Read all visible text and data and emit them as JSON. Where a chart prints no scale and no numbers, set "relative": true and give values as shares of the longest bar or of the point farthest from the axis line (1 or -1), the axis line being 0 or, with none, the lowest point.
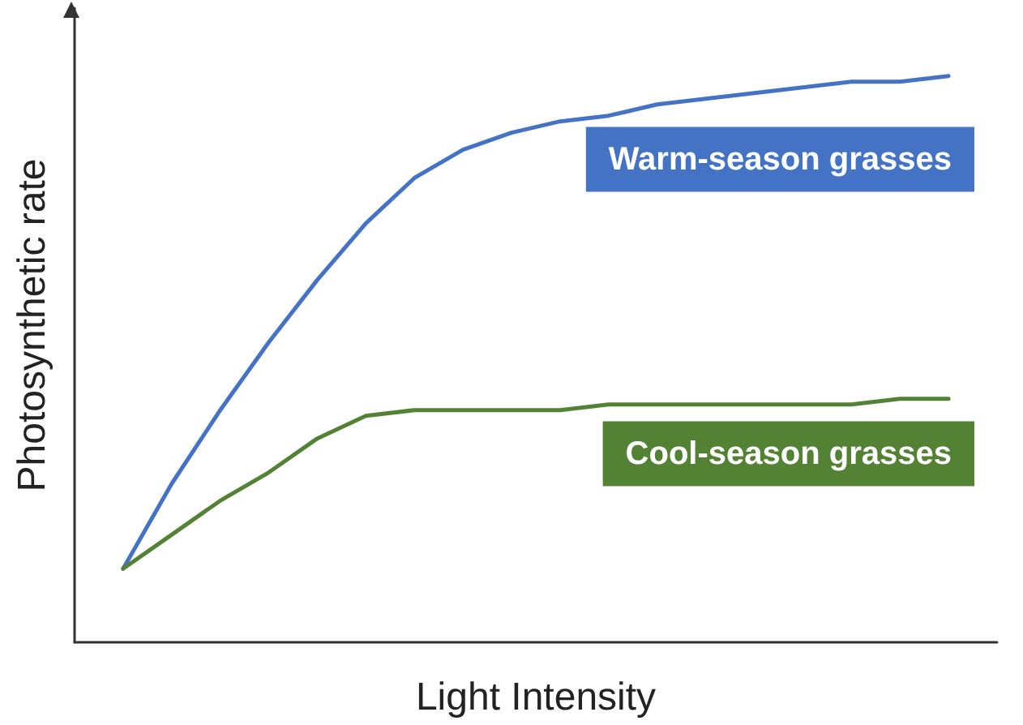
{
  "chart_data": {
    "type": "line",
    "relative": true,
    "xlabel": "Light Intensity",
    "ylabel": "Photosynthetic rate",
    "legend": false,
    "grid": false,
    "marker": "none",
    "line_style": "solid",
    "categories": [
      null,
      null,
      null,
      null,
      null,
      null,
      null,
      null,
      null,
      null,
      null,
      null,
      null,
      null,
      null,
      null,
      null,
      null,
      null,
      null
    ],
    "series": [
      {
        "name": "Warm-season grasses",
        "color": "#4472c4",
        "values": [
          null,
          0.13,
          0.28,
          0.41,
          0.53,
          0.64,
          0.74,
          0.82,
          0.87,
          0.9,
          0.92,
          0.93,
          0.95,
          0.96,
          0.97,
          0.98,
          0.99,
          0.99,
          1,
          null
        ]
      },
      {
        "name": "Cool-season grasses",
        "color": "#548235",
        "values": [
          null,
          0.13,
          0.19,
          0.25,
          0.3,
          0.36,
          0.4,
          0.41,
          0.41,
          0.41,
          0.41,
          0.42,
          0.42,
          0.42,
          0.42,
          0.42,
          0.42,
          0.43,
          0.43,
          null
        ]
      }
    ]
  }
}
